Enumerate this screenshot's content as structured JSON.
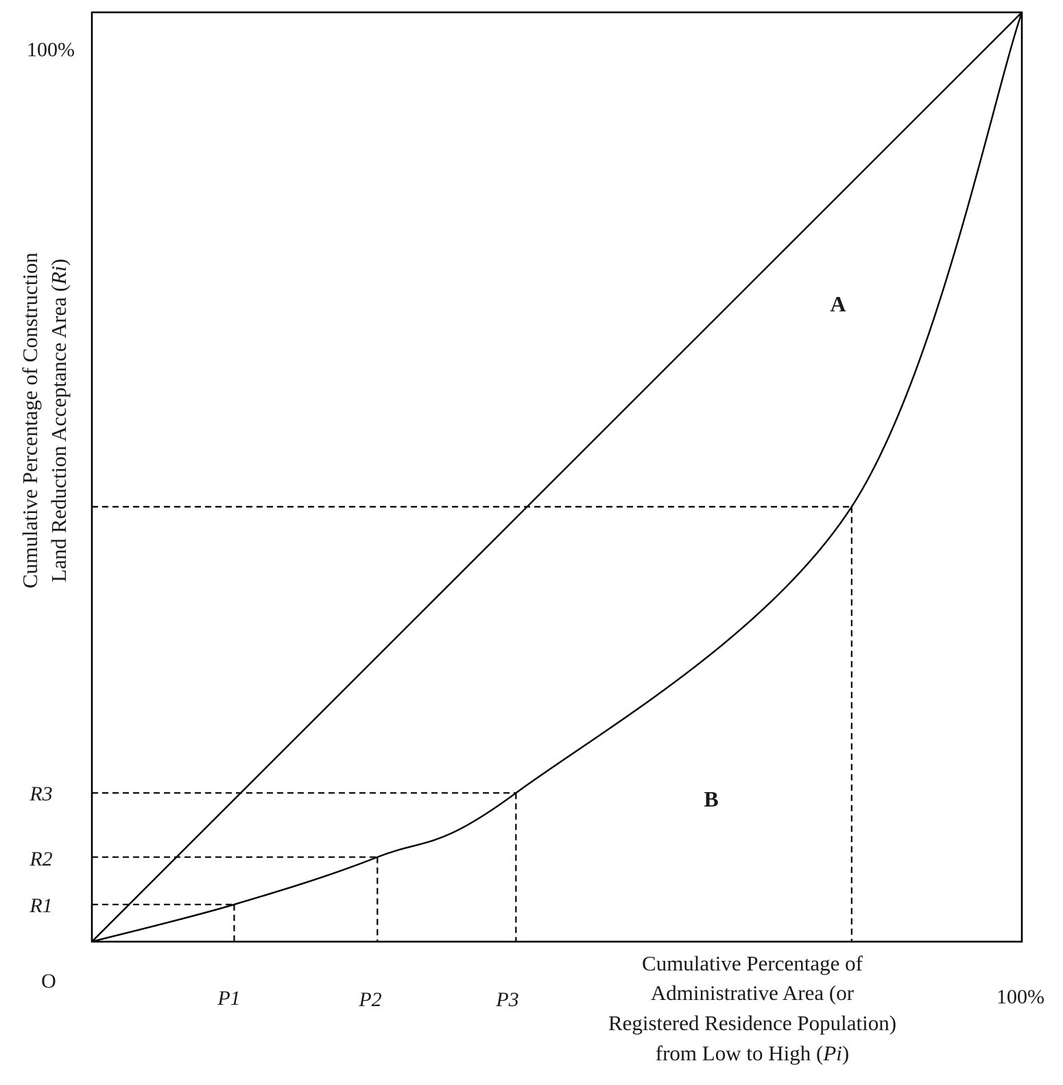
{
  "diagram": {
    "origin_label": "O",
    "y_top_label": "100%",
    "x_right_label": "100%",
    "y_axis_title": [
      "Cumulative Percentage of Construction",
      "Land Reduction Acceptance Area (",
      "Ri",
      ")"
    ],
    "x_axis_title": [
      "Cumulative Percentage of",
      "Administrative Area (or",
      "Registered Residence Population)",
      "from Low to High (",
      "Pi",
      ")"
    ],
    "x_ticks": [
      "P1",
      "P2",
      "P3"
    ],
    "y_ticks": [
      "R1",
      "R2",
      "R3"
    ],
    "regions": [
      "A",
      "B"
    ],
    "lines": [
      "equality-line",
      "lorenz-curve"
    ]
  },
  "chart_data": {
    "type": "line",
    "title": "",
    "xlabel": "Cumulative Percentage of Administrative Area (or Registered Residence Population) from Low to High (Pi)",
    "ylabel": "Cumulative Percentage of Construction Land Reduction Acceptance Area (Ri)",
    "xlim": [
      0,
      100
    ],
    "ylim": [
      0,
      100
    ],
    "series": [
      {
        "name": "Line of equality",
        "x": [
          0,
          100
        ],
        "y": [
          0,
          100
        ]
      },
      {
        "name": "Lorenz curve",
        "x": [
          0,
          15.3,
          30.7,
          45.6,
          81.7,
          100
        ],
        "y": [
          0,
          4.0,
          9.1,
          16.0,
          46.8,
          100
        ]
      }
    ],
    "marked_points": [
      {
        "x_label": "P1",
        "y_label": "R1",
        "x": 15.3,
        "y": 4.0
      },
      {
        "x_label": "P2",
        "y_label": "R2",
        "x": 30.7,
        "y": 9.1
      },
      {
        "x_label": "P3",
        "y_label": "R3",
        "x": 45.6,
        "y": 16.0
      },
      {
        "x_label": "",
        "y_label": "",
        "x": 81.7,
        "y": 46.8
      }
    ],
    "regions": [
      {
        "label": "A",
        "description_position": "between equality line and curve"
      },
      {
        "label": "B",
        "description_position": "below curve"
      }
    ]
  }
}
